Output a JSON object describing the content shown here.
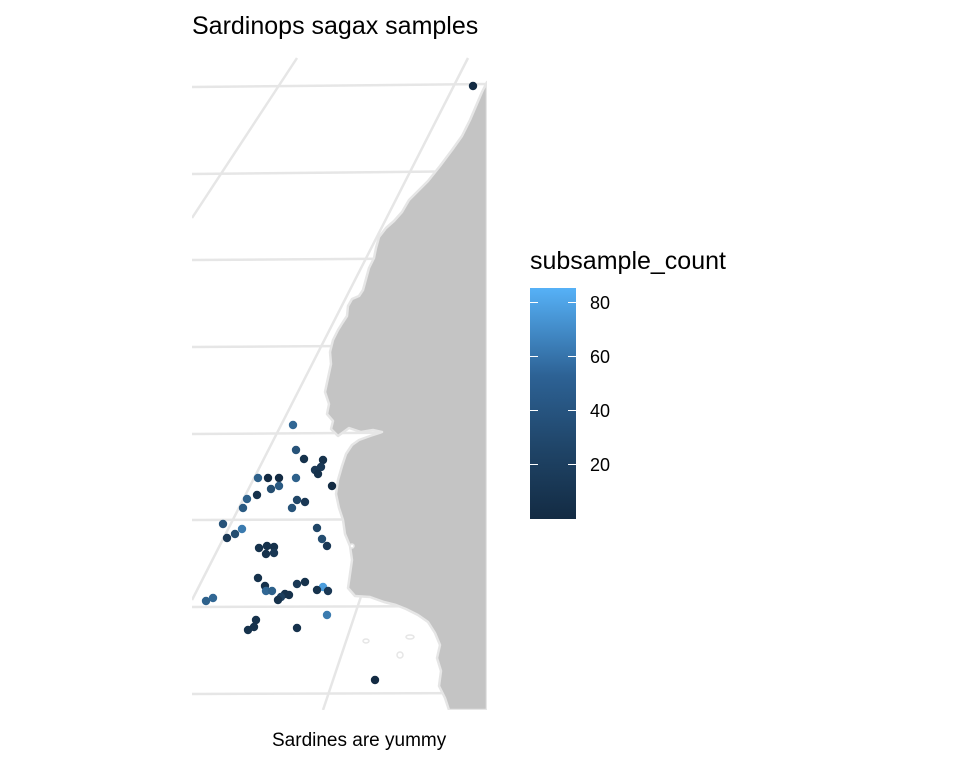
{
  "title": "Sardinops sagax samples",
  "caption": "Sardines are yummy",
  "map": {
    "land_color": "#c4c4c4",
    "coast_line_color": "#e6e6e6",
    "graticule_color": "#e6e6e6",
    "background_color": "#ffffff"
  },
  "legend": {
    "title": "subsample_count",
    "low_color": "#132b43",
    "high_color": "#56b1f7",
    "min": 1,
    "max": 86,
    "tick_labels": [
      "80",
      "60",
      "40",
      "20"
    ]
  },
  "chart_data": {
    "type": "scatter",
    "color_variable": "subsample_count",
    "color_scale": {
      "min": 1,
      "max": 86,
      "breaks": [
        20,
        40,
        60,
        80
      ]
    }
  }
}
